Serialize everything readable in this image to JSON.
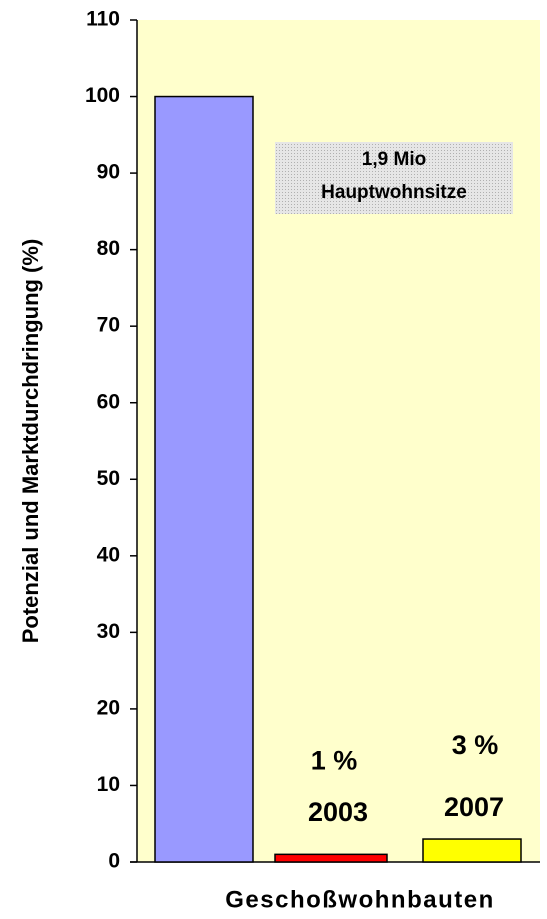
{
  "chart_data": {
    "type": "bar",
    "categories": [
      null,
      null,
      null
    ],
    "values": [
      100,
      1,
      3
    ],
    "value_labels": [
      null,
      "1 %",
      "3 %"
    ],
    "colors": [
      "#9999ff",
      "#ff0000",
      "#ffff00"
    ],
    "ylim": [
      0,
      110
    ],
    "yticks": [
      0,
      10,
      20,
      30,
      40,
      50,
      60,
      70,
      80,
      90,
      100,
      110
    ],
    "y_label": "Potenzial und Marktdurchdringung (%)",
    "x_label": "Geschoßwohnbauten",
    "annotations": [
      "1,9 Mio",
      "Hauptwohnsitze",
      "2003",
      "2007"
    ],
    "grid": false
  }
}
